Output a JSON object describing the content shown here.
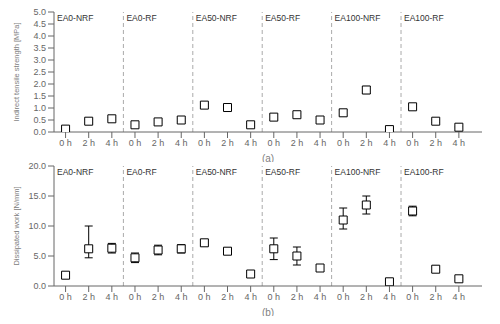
{
  "chart_data": [
    {
      "type": "scatter",
      "x_label": "(a)",
      "y_label": "Indirect tensile strength [MPa]",
      "marker": "square",
      "color": "black",
      "categories": [
        "0 h",
        "2 h",
        "4 h"
      ],
      "ylim": [
        0.0,
        5.0
      ],
      "yticks": [
        {
          "value": 0,
          "label": "0.0"
        },
        0.5,
        {
          "value": 1,
          "label": "1.0"
        },
        1.5,
        {
          "value": 2,
          "label": "2.0"
        },
        2.5,
        {
          "value": 3,
          "label": "3.0"
        },
        3.5,
        {
          "value": 4,
          "label": "4.0"
        },
        4.5,
        {
          "value": 5,
          "label": "5.0"
        }
      ],
      "series": [
        {
          "name": "EA0-NRF",
          "values": [
            0.12,
            0.45,
            0.55
          ],
          "err_low": [
            0.03,
            0.08,
            0.04
          ],
          "err_high": [
            0.03,
            0.08,
            0.04
          ]
        },
        {
          "name": "EA0-RF",
          "values": [
            0.3,
            0.42,
            0.5
          ],
          "err_low": [
            0.04,
            0.05,
            0.05
          ],
          "err_high": [
            0.04,
            0.05,
            0.05
          ]
        },
        {
          "name": "EA50-NRF",
          "values": [
            1.12,
            1.02,
            0.3
          ],
          "err_low": [
            0.05,
            0.07,
            0.05
          ],
          "err_high": [
            0.05,
            0.07,
            0.05
          ]
        },
        {
          "name": "EA50-RF",
          "values": [
            0.62,
            0.72,
            0.5
          ],
          "err_low": [
            0.12,
            0.05,
            0.05
          ],
          "err_high": [
            0.12,
            0.05,
            0.05
          ]
        },
        {
          "name": "EA100-NRF",
          "values": [
            0.8,
            1.75,
            0.1
          ],
          "err_low": [
            0.12,
            0.15,
            0.05
          ],
          "err_high": [
            0.12,
            0.15,
            0.05
          ]
        },
        {
          "name": "EA100-RF",
          "values": [
            1.05,
            0.45,
            0.2
          ],
          "err_low": [
            0.1,
            0.05,
            0.03
          ],
          "err_high": [
            0.1,
            0.05,
            0.03
          ]
        }
      ]
    },
    {
      "type": "scatter",
      "x_label": "(b)",
      "y_label": "Dissipated work [N/mm]",
      "marker": "square",
      "color": "black",
      "categories": [
        "0 h",
        "2 h",
        "4 h"
      ],
      "ylim": [
        0.0,
        20.0
      ],
      "yticks": [
        {
          "value": 0,
          "label": "0.0"
        },
        {
          "value": 5,
          "label": "5.0"
        },
        {
          "value": 10,
          "label": "10.0"
        },
        {
          "value": 15,
          "label": "15.0"
        },
        {
          "value": 20,
          "label": "20.0"
        }
      ],
      "series": [
        {
          "name": "EA0-NRF",
          "values": [
            1.8,
            6.2,
            6.3
          ],
          "err_low": [
            0.2,
            1.5,
            0.8
          ],
          "err_high": [
            0.2,
            3.8,
            0.8
          ]
        },
        {
          "name": "EA0-RF",
          "values": [
            4.7,
            6.0,
            6.2
          ],
          "err_low": [
            0.8,
            0.8,
            0.7
          ],
          "err_high": [
            0.8,
            0.8,
            0.7
          ]
        },
        {
          "name": "EA50-NRF",
          "values": [
            7.2,
            5.8,
            2.0
          ],
          "err_low": [
            0.5,
            0.5,
            0.3
          ],
          "err_high": [
            0.5,
            0.5,
            0.3
          ]
        },
        {
          "name": "EA50-RF",
          "values": [
            6.2,
            5.0,
            3.0
          ],
          "err_low": [
            1.8,
            1.5,
            0.5
          ],
          "err_high": [
            1.8,
            1.5,
            0.5
          ]
        },
        {
          "name": "EA100-NRF",
          "values": [
            11.0,
            13.5,
            0.7
          ],
          "err_low": [
            1.5,
            1.5,
            0.4
          ],
          "err_high": [
            2.0,
            1.5,
            0.4
          ]
        },
        {
          "name": "EA100-RF",
          "values": [
            12.5,
            2.8,
            1.2
          ],
          "err_low": [
            0.8,
            0.5,
            0.3
          ],
          "err_high": [
            0.8,
            0.5,
            0.3
          ]
        }
      ]
    }
  ]
}
